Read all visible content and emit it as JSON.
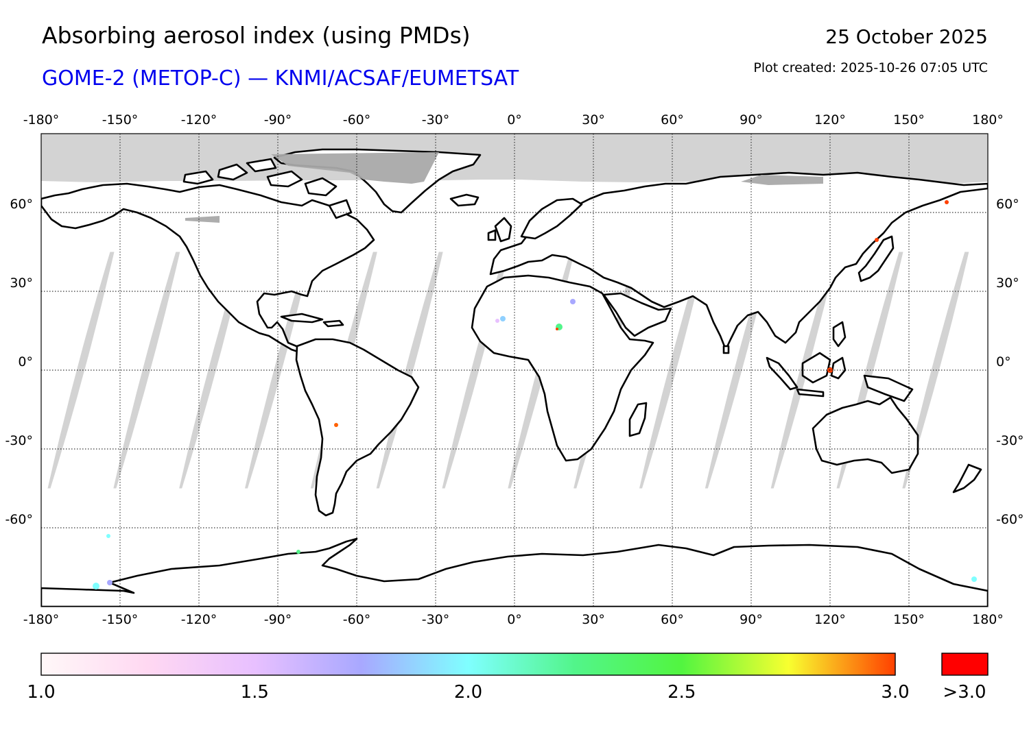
{
  "header": {
    "title": "Absorbing aerosol index (using PMDs)",
    "subtitle": "GOME-2 (METOP-C) — KNMI/ACSAF/EUMETSAT",
    "date": "25 October 2025",
    "plot_created": "Plot created: 2025-10-26 07:05 UTC"
  },
  "map": {
    "projection": "equirectangular",
    "lon_range": [
      -180,
      180
    ],
    "lat_range": [
      -90,
      90
    ],
    "lon_ticks": [
      -180,
      -150,
      -120,
      -90,
      -60,
      -30,
      0,
      30,
      60,
      90,
      120,
      150,
      180
    ],
    "lon_tick_labels": [
      "-180°",
      "-150°",
      "-120°",
      "-90°",
      "-60°",
      "-30°",
      "0°",
      "30°",
      "60°",
      "90°",
      "120°",
      "150°",
      "180°"
    ],
    "lat_ticks": [
      60,
      30,
      0,
      -30,
      -60
    ],
    "lat_tick_labels": [
      "60°",
      "30°",
      "0°",
      "-30°",
      "-60°"
    ],
    "no_data_color": "#d3d3d3",
    "land_no_data_color": "#a9a9a9",
    "coast_color": "#000000",
    "orbit_gap_centers_lon_at_equator": [
      -165,
      -140,
      -115,
      -90,
      -65,
      -40,
      -15,
      10,
      35,
      60,
      85,
      110,
      135,
      160
    ]
  },
  "colorbar": {
    "min": 1.0,
    "max": 3.0,
    "tick_values": [
      1.0,
      1.5,
      2.0,
      2.5,
      3.0
    ],
    "tick_labels": [
      "1.0",
      "1.5",
      "2.0",
      "2.5",
      "3.0"
    ],
    "overflow_label": ">3.0",
    "overflow_color": "#ff0000",
    "gradient_colors": [
      "#fff8f8",
      "#ffd8f2",
      "#e8c0ff",
      "#a8a8ff",
      "#7fffff",
      "#52f58a",
      "#52f540",
      "#f8ff30",
      "#ff4000"
    ]
  }
}
